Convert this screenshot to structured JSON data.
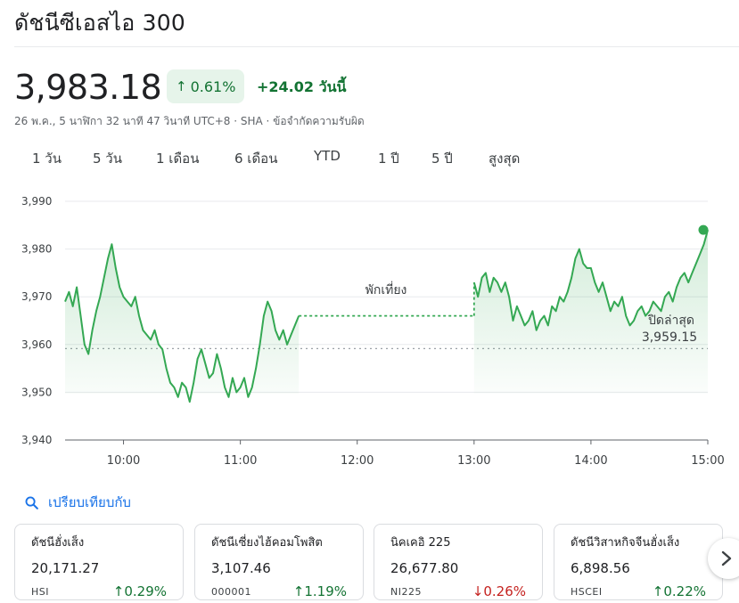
{
  "header": {
    "title": "ดัชนีซีเอสไอ 300"
  },
  "quote": {
    "price": "3,983.18",
    "pct_change": "0.61%",
    "abs_change": "+24.02",
    "today_label": "วันนี้",
    "meta": "26 พ.ค., 5 นาฬิกา 32 นาที 47 วินาที UTC+8 · SHA · ข้อจำกัดความรับผิด",
    "up_color": "#137333",
    "down_color": "#c5221f"
  },
  "tabs": [
    {
      "label": "1 วัน",
      "active": true
    },
    {
      "label": "5 วัน",
      "active": false
    },
    {
      "label": "1 เดือน",
      "active": false
    },
    {
      "label": "6 เดือน",
      "active": false
    },
    {
      "label": "YTD",
      "active": false
    },
    {
      "label": "1 ปี",
      "active": false
    },
    {
      "label": "5 ปี",
      "active": false
    },
    {
      "label": "สูงสุด",
      "active": false
    }
  ],
  "chart_data": {
    "type": "line",
    "y_ticks": [
      "3,990",
      "3,980",
      "3,970",
      "3,960",
      "3,950",
      "3,940"
    ],
    "x_ticks": [
      "10:00",
      "11:00",
      "12:00",
      "13:00",
      "14:00",
      "15:00"
    ],
    "ylim": [
      3940,
      3990
    ],
    "xlim": [
      "09:30",
      "15:00"
    ],
    "previous_close": 3959.15,
    "previous_close_label": "ปิดล่าสุด",
    "previous_close_value": "3,959.15",
    "lunch_break_label": "พักเที่ยง",
    "lunch_break": [
      "11:30",
      "13:00"
    ],
    "line_color": "#34a853",
    "series": [
      {
        "x": [
          "09:30",
          "09:32",
          "09:34",
          "09:36",
          "09:38",
          "09:40",
          "09:42",
          "09:44",
          "09:46",
          "09:48",
          "09:50",
          "09:52",
          "09:54",
          "09:56",
          "09:58",
          "10:00",
          "10:02",
          "10:04",
          "10:06",
          "10:08",
          "10:10",
          "10:12",
          "10:14",
          "10:16",
          "10:18",
          "10:20",
          "10:22",
          "10:24",
          "10:26",
          "10:28",
          "10:30",
          "10:32",
          "10:34",
          "10:36",
          "10:38",
          "10:40",
          "10:42",
          "10:44",
          "10:46",
          "10:48",
          "10:50",
          "10:52",
          "10:54",
          "10:56",
          "10:58",
          "11:00",
          "11:02",
          "11:04",
          "11:06",
          "11:08",
          "11:10",
          "11:12",
          "11:14",
          "11:16",
          "11:18",
          "11:20",
          "11:22",
          "11:24",
          "11:26",
          "11:28",
          "11:30"
        ],
        "values": [
          3969,
          3971,
          3968,
          3972,
          3966,
          3960,
          3958,
          3963,
          3967,
          3970,
          3974,
          3978,
          3981,
          3976,
          3972,
          3970,
          3969,
          3968,
          3970,
          3966,
          3963,
          3962,
          3961,
          3963,
          3960,
          3959,
          3955,
          3952,
          3951,
          3949,
          3952,
          3951,
          3948,
          3952,
          3957,
          3959,
          3956,
          3953,
          3954,
          3958,
          3955,
          3951,
          3949,
          3953,
          3950,
          3951,
          3953,
          3949,
          3951,
          3955,
          3960,
          3966,
          3969,
          3967,
          3963,
          3961,
          3963,
          3960,
          3962,
          3964,
          3966
        ]
      },
      {
        "x": [
          "13:00",
          "13:02",
          "13:04",
          "13:06",
          "13:08",
          "13:10",
          "13:12",
          "13:14",
          "13:16",
          "13:18",
          "13:20",
          "13:22",
          "13:24",
          "13:26",
          "13:28",
          "13:30",
          "13:32",
          "13:34",
          "13:36",
          "13:38",
          "13:40",
          "13:42",
          "13:44",
          "13:46",
          "13:48",
          "13:50",
          "13:52",
          "13:54",
          "13:56",
          "13:58",
          "14:00",
          "14:02",
          "14:04",
          "14:06",
          "14:08",
          "14:10",
          "14:12",
          "14:14",
          "14:16",
          "14:18",
          "14:20",
          "14:22",
          "14:24",
          "14:26",
          "14:28",
          "14:30",
          "14:32",
          "14:34",
          "14:36",
          "14:38",
          "14:40",
          "14:42",
          "14:44",
          "14:46",
          "14:48",
          "14:50",
          "14:52",
          "14:54",
          "14:56",
          "14:58",
          "15:00"
        ],
        "values": [
          3973,
          3970,
          3974,
          3975,
          3971,
          3974,
          3973,
          3971,
          3973,
          3970,
          3965,
          3968,
          3966,
          3964,
          3965,
          3967,
          3963,
          3965,
          3966,
          3964,
          3968,
          3967,
          3970,
          3969,
          3971,
          3974,
          3978,
          3980,
          3977,
          3976,
          3976,
          3973,
          3971,
          3973,
          3970,
          3967,
          3969,
          3968,
          3970,
          3966,
          3964,
          3965,
          3967,
          3968,
          3966,
          3967,
          3969,
          3968,
          3967,
          3970,
          3971,
          3969,
          3972,
          3974,
          3975,
          3973,
          3975,
          3977,
          3979,
          3981,
          3984
        ]
      }
    ]
  },
  "compare": {
    "label": "เปรียบเทียบกับ"
  },
  "cards": [
    {
      "name": "ดัชนีฮั่งเส็ง",
      "value": "20,171.27",
      "symbol": "HSI",
      "change": "0.29%",
      "direction": "up"
    },
    {
      "name": "ดัชนีเซี่ยงไฮ้คอมโพสิต",
      "value": "3,107.46",
      "symbol": "000001",
      "change": "1.19%",
      "direction": "up"
    },
    {
      "name": "นิคเคอิ 225",
      "value": "26,677.80",
      "symbol": "NI225",
      "change": "0.26%",
      "direction": "down"
    },
    {
      "name": "ดัชนีวิสาหกิจจีนฮั่งเส็ง",
      "value": "6,898.56",
      "symbol": "HSCEI",
      "change": "0.22%",
      "direction": "up"
    }
  ]
}
